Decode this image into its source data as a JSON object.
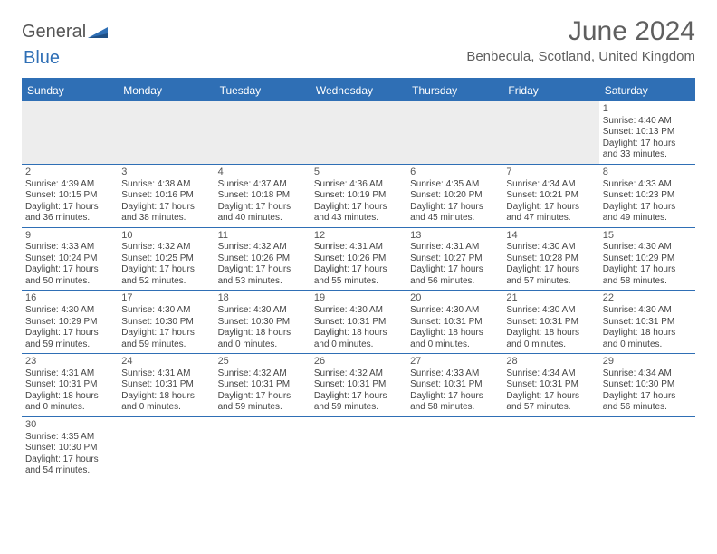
{
  "logo": {
    "text1": "General",
    "text2": "Blue",
    "sail_color": "#2f6fb5"
  },
  "title": "June 2024",
  "location": "Benbecula, Scotland, United Kingdom",
  "header_bg": "#2f6fb5",
  "day_names": [
    "Sunday",
    "Monday",
    "Tuesday",
    "Wednesday",
    "Thursday",
    "Friday",
    "Saturday"
  ],
  "weeks": [
    [
      {
        "blank": true
      },
      {
        "blank": true
      },
      {
        "blank": true
      },
      {
        "blank": true
      },
      {
        "blank": true
      },
      {
        "blank": true
      },
      {
        "num": "1",
        "sunrise": "Sunrise: 4:40 AM",
        "sunset": "Sunset: 10:13 PM",
        "dl1": "Daylight: 17 hours",
        "dl2": "and 33 minutes."
      }
    ],
    [
      {
        "num": "2",
        "sunrise": "Sunrise: 4:39 AM",
        "sunset": "Sunset: 10:15 PM",
        "dl1": "Daylight: 17 hours",
        "dl2": "and 36 minutes."
      },
      {
        "num": "3",
        "sunrise": "Sunrise: 4:38 AM",
        "sunset": "Sunset: 10:16 PM",
        "dl1": "Daylight: 17 hours",
        "dl2": "and 38 minutes."
      },
      {
        "num": "4",
        "sunrise": "Sunrise: 4:37 AM",
        "sunset": "Sunset: 10:18 PM",
        "dl1": "Daylight: 17 hours",
        "dl2": "and 40 minutes."
      },
      {
        "num": "5",
        "sunrise": "Sunrise: 4:36 AM",
        "sunset": "Sunset: 10:19 PM",
        "dl1": "Daylight: 17 hours",
        "dl2": "and 43 minutes."
      },
      {
        "num": "6",
        "sunrise": "Sunrise: 4:35 AM",
        "sunset": "Sunset: 10:20 PM",
        "dl1": "Daylight: 17 hours",
        "dl2": "and 45 minutes."
      },
      {
        "num": "7",
        "sunrise": "Sunrise: 4:34 AM",
        "sunset": "Sunset: 10:21 PM",
        "dl1": "Daylight: 17 hours",
        "dl2": "and 47 minutes."
      },
      {
        "num": "8",
        "sunrise": "Sunrise: 4:33 AM",
        "sunset": "Sunset: 10:23 PM",
        "dl1": "Daylight: 17 hours",
        "dl2": "and 49 minutes."
      }
    ],
    [
      {
        "num": "9",
        "sunrise": "Sunrise: 4:33 AM",
        "sunset": "Sunset: 10:24 PM",
        "dl1": "Daylight: 17 hours",
        "dl2": "and 50 minutes."
      },
      {
        "num": "10",
        "sunrise": "Sunrise: 4:32 AM",
        "sunset": "Sunset: 10:25 PM",
        "dl1": "Daylight: 17 hours",
        "dl2": "and 52 minutes."
      },
      {
        "num": "11",
        "sunrise": "Sunrise: 4:32 AM",
        "sunset": "Sunset: 10:26 PM",
        "dl1": "Daylight: 17 hours",
        "dl2": "and 53 minutes."
      },
      {
        "num": "12",
        "sunrise": "Sunrise: 4:31 AM",
        "sunset": "Sunset: 10:26 PM",
        "dl1": "Daylight: 17 hours",
        "dl2": "and 55 minutes."
      },
      {
        "num": "13",
        "sunrise": "Sunrise: 4:31 AM",
        "sunset": "Sunset: 10:27 PM",
        "dl1": "Daylight: 17 hours",
        "dl2": "and 56 minutes."
      },
      {
        "num": "14",
        "sunrise": "Sunrise: 4:30 AM",
        "sunset": "Sunset: 10:28 PM",
        "dl1": "Daylight: 17 hours",
        "dl2": "and 57 minutes."
      },
      {
        "num": "15",
        "sunrise": "Sunrise: 4:30 AM",
        "sunset": "Sunset: 10:29 PM",
        "dl1": "Daylight: 17 hours",
        "dl2": "and 58 minutes."
      }
    ],
    [
      {
        "num": "16",
        "sunrise": "Sunrise: 4:30 AM",
        "sunset": "Sunset: 10:29 PM",
        "dl1": "Daylight: 17 hours",
        "dl2": "and 59 minutes."
      },
      {
        "num": "17",
        "sunrise": "Sunrise: 4:30 AM",
        "sunset": "Sunset: 10:30 PM",
        "dl1": "Daylight: 17 hours",
        "dl2": "and 59 minutes."
      },
      {
        "num": "18",
        "sunrise": "Sunrise: 4:30 AM",
        "sunset": "Sunset: 10:30 PM",
        "dl1": "Daylight: 18 hours",
        "dl2": "and 0 minutes."
      },
      {
        "num": "19",
        "sunrise": "Sunrise: 4:30 AM",
        "sunset": "Sunset: 10:31 PM",
        "dl1": "Daylight: 18 hours",
        "dl2": "and 0 minutes."
      },
      {
        "num": "20",
        "sunrise": "Sunrise: 4:30 AM",
        "sunset": "Sunset: 10:31 PM",
        "dl1": "Daylight: 18 hours",
        "dl2": "and 0 minutes."
      },
      {
        "num": "21",
        "sunrise": "Sunrise: 4:30 AM",
        "sunset": "Sunset: 10:31 PM",
        "dl1": "Daylight: 18 hours",
        "dl2": "and 0 minutes."
      },
      {
        "num": "22",
        "sunrise": "Sunrise: 4:30 AM",
        "sunset": "Sunset: 10:31 PM",
        "dl1": "Daylight: 18 hours",
        "dl2": "and 0 minutes."
      }
    ],
    [
      {
        "num": "23",
        "sunrise": "Sunrise: 4:31 AM",
        "sunset": "Sunset: 10:31 PM",
        "dl1": "Daylight: 18 hours",
        "dl2": "and 0 minutes."
      },
      {
        "num": "24",
        "sunrise": "Sunrise: 4:31 AM",
        "sunset": "Sunset: 10:31 PM",
        "dl1": "Daylight: 18 hours",
        "dl2": "and 0 minutes."
      },
      {
        "num": "25",
        "sunrise": "Sunrise: 4:32 AM",
        "sunset": "Sunset: 10:31 PM",
        "dl1": "Daylight: 17 hours",
        "dl2": "and 59 minutes."
      },
      {
        "num": "26",
        "sunrise": "Sunrise: 4:32 AM",
        "sunset": "Sunset: 10:31 PM",
        "dl1": "Daylight: 17 hours",
        "dl2": "and 59 minutes."
      },
      {
        "num": "27",
        "sunrise": "Sunrise: 4:33 AM",
        "sunset": "Sunset: 10:31 PM",
        "dl1": "Daylight: 17 hours",
        "dl2": "and 58 minutes."
      },
      {
        "num": "28",
        "sunrise": "Sunrise: 4:34 AM",
        "sunset": "Sunset: 10:31 PM",
        "dl1": "Daylight: 17 hours",
        "dl2": "and 57 minutes."
      },
      {
        "num": "29",
        "sunrise": "Sunrise: 4:34 AM",
        "sunset": "Sunset: 10:30 PM",
        "dl1": "Daylight: 17 hours",
        "dl2": "and 56 minutes."
      }
    ],
    [
      {
        "num": "30",
        "sunrise": "Sunrise: 4:35 AM",
        "sunset": "Sunset: 10:30 PM",
        "dl1": "Daylight: 17 hours",
        "dl2": "and 54 minutes."
      },
      {
        "blank": true
      },
      {
        "blank": true
      },
      {
        "blank": true
      },
      {
        "blank": true
      },
      {
        "blank": true
      },
      {
        "blank": true
      }
    ]
  ]
}
